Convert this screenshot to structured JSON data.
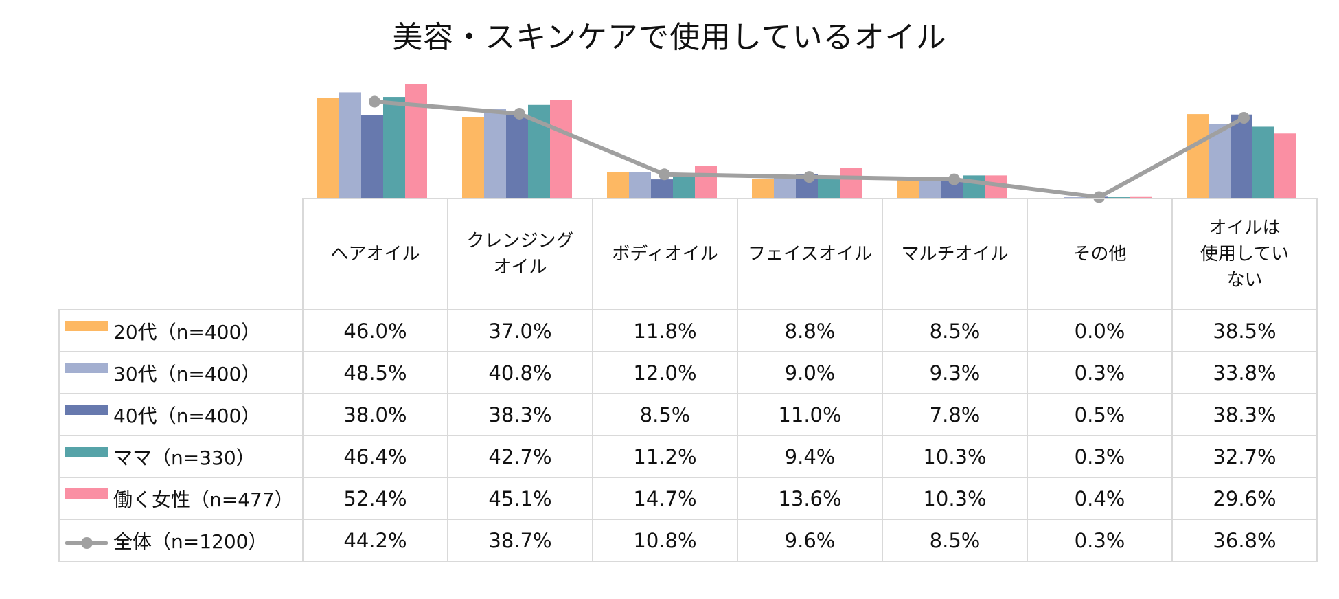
{
  "chart_data": {
    "type": "bar",
    "title": "美容・スキンケアで使用しているオイル",
    "categories": [
      "ヘアオイル",
      "クレンジング\nオイル",
      "ボディオイル",
      "フェイスオイル",
      "マルチオイル",
      "その他",
      "オイルは\n使用してい\nない"
    ],
    "series": [
      {
        "name": "20代（n=400）",
        "color": "#FDB863",
        "kind": "bar",
        "values": [
          46.0,
          37.0,
          11.8,
          8.8,
          8.5,
          0.0,
          38.5
        ]
      },
      {
        "name": "30代（n=400）",
        "color": "#A3AFD0",
        "kind": "bar",
        "values": [
          48.5,
          40.8,
          12.0,
          9.0,
          9.3,
          0.3,
          33.8
        ]
      },
      {
        "name": "40代（n=400）",
        "color": "#6779AE",
        "kind": "bar",
        "values": [
          38.0,
          38.3,
          8.5,
          11.0,
          7.8,
          0.5,
          38.3
        ]
      },
      {
        "name": "ママ（n=330）",
        "color": "#56A3A8",
        "kind": "bar",
        "values": [
          46.4,
          42.7,
          11.2,
          9.4,
          10.3,
          0.3,
          32.7
        ]
      },
      {
        "name": "働く女性（n=477）",
        "color": "#FA8FA3",
        "kind": "bar",
        "values": [
          52.4,
          45.1,
          14.7,
          13.6,
          10.3,
          0.4,
          29.6
        ]
      },
      {
        "name": "全体（n=1200）",
        "color": "#A0A0A0",
        "kind": "line",
        "values": [
          44.2,
          38.7,
          10.8,
          9.6,
          8.5,
          0.3,
          36.8
        ]
      }
    ],
    "value_format": "{v}%",
    "ylim": [
      0,
      60
    ],
    "axes_visible": false,
    "legend": "table-left"
  }
}
